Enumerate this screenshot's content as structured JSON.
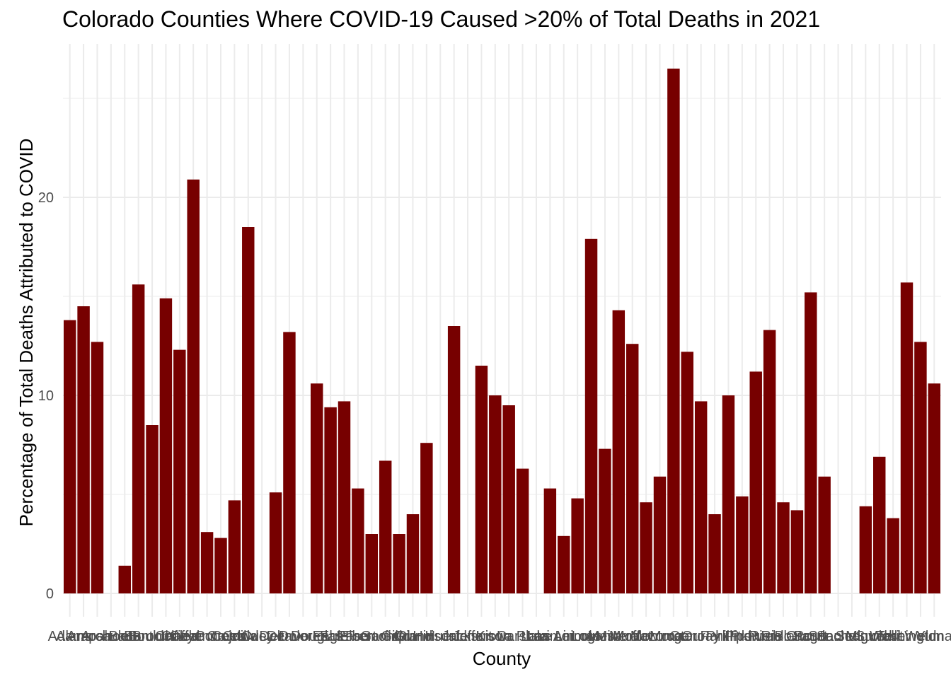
{
  "chart_data": {
    "type": "bar",
    "title": "Colorado Counties Where COVID-19 Caused >20% of Total Deaths in 2021",
    "xlabel": "County",
    "ylabel": "Percentage of Total Deaths Attributed to COVID",
    "ylim": [
      0,
      26.5
    ],
    "yticks": [
      0,
      10,
      20
    ],
    "grid": true,
    "bar_color": "#770000",
    "categories": [
      "Adams",
      "Alamosa",
      "Arapahoe",
      "Archuleta",
      "Baca",
      "Bent",
      "Boulder",
      "Broomfield",
      "Chaffee",
      "Cheyenne",
      "Clear Creek",
      "Conejos",
      "Costilla",
      "Crowley",
      "Custer",
      "Delta",
      "Denver",
      "Dolores",
      "Douglas",
      "Eagle",
      "El Paso",
      "Elbert",
      "Fremont",
      "Garfield",
      "Gilpin",
      "Grand",
      "Gunnison",
      "Hinsdale",
      "Huerfano",
      "Jackson",
      "Jefferson",
      "Kiowa",
      "Kit Carson",
      "La Plata",
      "Lake",
      "Larimer",
      "Las Animas",
      "Lincoln",
      "Logan",
      "Mesa",
      "Mineral",
      "Moffat",
      "Montezuma",
      "Montrose",
      "Morgan",
      "Otero",
      "Ouray",
      "Park",
      "Phillips",
      "Pitkin",
      "Prowers",
      "Pueblo",
      "Rio Blanco",
      "Rio Grande",
      "Routt",
      "Saguache",
      "San Juan",
      "San Miguel",
      "Sedgwick",
      "Summit",
      "Teller",
      "Washington",
      "Weld",
      "Yuma"
    ],
    "values": [
      13.8,
      14.5,
      12.7,
      0,
      1.4,
      15.6,
      8.5,
      14.9,
      12.3,
      20.9,
      3.1,
      2.8,
      4.7,
      18.5,
      0,
      5.1,
      13.2,
      0,
      10.6,
      9.4,
      9.7,
      5.3,
      3.0,
      6.7,
      3.0,
      4.0,
      7.6,
      0,
      13.5,
      0,
      11.5,
      10.0,
      9.5,
      6.3,
      0,
      5.3,
      2.9,
      4.8,
      17.9,
      7.3,
      14.3,
      12.6,
      4.6,
      5.9,
      26.5,
      12.2,
      9.7,
      4.0,
      10.0,
      4.9,
      11.2,
      13.3,
      4.6,
      4.2,
      15.2,
      5.9,
      0,
      0,
      4.4,
      6.9,
      3.8,
      15.7,
      12.7,
      10.6
    ]
  }
}
